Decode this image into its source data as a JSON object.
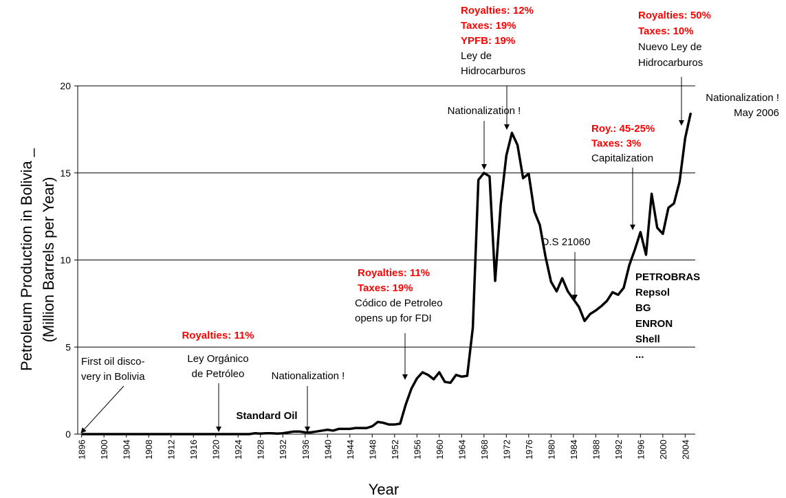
{
  "chart_data": {
    "type": "line",
    "x_title": "Year",
    "y_title": [
      "Petroleum Production in Bolivia _",
      "(Million Barrels per Year)"
    ],
    "x": [
      1896,
      1897,
      1898,
      1899,
      1900,
      1901,
      1902,
      1903,
      1904,
      1905,
      1906,
      1907,
      1908,
      1909,
      1910,
      1911,
      1912,
      1913,
      1914,
      1915,
      1916,
      1917,
      1918,
      1919,
      1920,
      1921,
      1922,
      1923,
      1924,
      1925,
      1926,
      1927,
      1928,
      1929,
      1930,
      1931,
      1932,
      1933,
      1934,
      1935,
      1936,
      1937,
      1938,
      1939,
      1940,
      1941,
      1942,
      1943,
      1944,
      1945,
      1946,
      1947,
      1948,
      1949,
      1950,
      1951,
      1952,
      1953,
      1954,
      1955,
      1956,
      1957,
      1958,
      1959,
      1960,
      1961,
      1962,
      1963,
      1964,
      1965,
      1966,
      1967,
      1968,
      1969,
      1970,
      1971,
      1972,
      1973,
      1974,
      1975,
      1976,
      1977,
      1978,
      1979,
      1980,
      1981,
      1982,
      1983,
      1984,
      1985,
      1986,
      1987,
      1988,
      1989,
      1990,
      1991,
      1992,
      1993,
      1994,
      1995,
      1996,
      1997,
      1998,
      1999,
      2000,
      2001,
      2002,
      2003,
      2004,
      2005
    ],
    "series": [
      {
        "color": "#000000",
        "values": [
          0,
          0,
          0,
          0,
          0,
          0,
          0,
          0,
          0,
          0,
          0,
          0,
          0,
          0,
          0,
          0,
          0,
          0,
          0,
          0,
          0,
          0,
          0,
          0,
          0,
          0,
          0,
          0,
          0,
          0,
          0,
          0.05,
          0.03,
          0.05,
          0.05,
          0.03,
          0.05,
          0.1,
          0.15,
          0.15,
          0.1,
          0.1,
          0.15,
          0.2,
          0.25,
          0.2,
          0.3,
          0.3,
          0.3,
          0.35,
          0.35,
          0.35,
          0.45,
          0.7,
          0.65,
          0.55,
          0.55,
          0.6,
          1.7,
          2.6,
          3.2,
          3.55,
          3.4,
          3.15,
          3.55,
          3.0,
          2.95,
          3.4,
          3.3,
          3.35,
          6.1,
          14.6,
          15.0,
          14.8,
          8.8,
          13.2,
          16.0,
          17.3,
          16.6,
          14.7,
          14.95,
          12.8,
          12.0,
          10.2,
          8.75,
          8.2,
          8.95,
          8.2,
          7.75,
          7.3,
          6.5,
          6.9,
          7.1,
          7.35,
          7.65,
          8.15,
          8.0,
          8.4,
          9.7,
          10.6,
          11.6,
          10.3,
          13.8,
          11.85,
          11.5,
          13.0,
          13.25,
          14.5,
          17.0,
          18.45
        ]
      }
    ],
    "xlim": [
      1895.3,
      2005.8
    ],
    "xticks": [
      1896,
      1900,
      1904,
      1908,
      1912,
      1916,
      1920,
      1924,
      1928,
      1932,
      1936,
      1940,
      1944,
      1948,
      1952,
      1956,
      1960,
      1964,
      1968,
      1972,
      1976,
      1980,
      1984,
      1988,
      1992,
      1996,
      2000,
      2004
    ],
    "ylim": [
      0,
      20
    ],
    "yticks": [
      0,
      5,
      10,
      15,
      20
    ],
    "grid": true,
    "annotations": [
      {
        "lines": [
          {
            "text": "First oil disco-",
            "color": "#000000",
            "bold": false
          },
          {
            "text": "very in Bolivia",
            "color": "#000000",
            "bold": false
          }
        ]
      },
      {
        "lines": [
          {
            "text": "Royalties: 11%",
            "color": "#ff0000",
            "bold": true
          },
          {
            "text": "Ley Orgánico",
            "color": "#000000",
            "bold": false
          },
          {
            "text": "de Petróleo",
            "color": "#000000",
            "bold": false
          }
        ]
      },
      {
        "lines": [
          {
            "text": "Standard Oil",
            "color": "#000000",
            "bold": true
          }
        ]
      },
      {
        "lines": [
          {
            "text": "Nationalization !",
            "color": "#000000",
            "bold": false
          }
        ]
      },
      {
        "lines": [
          {
            "text": "Royalties: 11%",
            "color": "#ff0000",
            "bold": true
          },
          {
            "text": "Taxes: 19%",
            "color": "#ff0000",
            "bold": true
          },
          {
            "text": "Códico de Petroleo",
            "color": "#000000",
            "bold": false
          },
          {
            "text": "opens up for FDI",
            "color": "#000000",
            "bold": false
          }
        ]
      },
      {
        "lines": [
          {
            "text": "Nationalization !",
            "color": "#000000",
            "bold": false
          }
        ]
      },
      {
        "lines": [
          {
            "text": "Royalties: 12%",
            "color": "#ff0000",
            "bold": true
          },
          {
            "text": "Taxes: 19%",
            "color": "#ff0000",
            "bold": true
          },
          {
            "text": "YPFB: 19%",
            "color": "#ff0000",
            "bold": true
          },
          {
            "text": "Ley de",
            "color": "#000000",
            "bold": false
          },
          {
            "text": "Hidrocarburos",
            "color": "#000000",
            "bold": false
          }
        ]
      },
      {
        "lines": [
          {
            "text": "D.S 21060",
            "color": "#000000",
            "bold": false
          }
        ]
      },
      {
        "lines": [
          {
            "text": "Roy.: 45-25%",
            "color": "#ff0000",
            "bold": true
          },
          {
            "text": "Taxes: 3%",
            "color": "#ff0000",
            "bold": true
          },
          {
            "text": "Capitalization",
            "color": "#000000",
            "bold": false
          }
        ]
      },
      {
        "lines": [
          {
            "text": "Royalties: 50%",
            "color": "#ff0000",
            "bold": true
          },
          {
            "text": "Taxes: 10%",
            "color": "#ff0000",
            "bold": true
          },
          {
            "text": "Nuevo Ley de",
            "color": "#000000",
            "bold": false
          },
          {
            "text": "Hidrocarburos",
            "color": "#000000",
            "bold": false
          }
        ]
      },
      {
        "lines": [
          {
            "text": "Nationalization !",
            "color": "#000000",
            "bold": false
          },
          {
            "text": "May 2006",
            "color": "#000000",
            "bold": false
          }
        ]
      },
      {
        "lines": [
          {
            "text": "PETROBRAS",
            "color": "#000000",
            "bold": true
          },
          {
            "text": "Repsol",
            "color": "#000000",
            "bold": true
          },
          {
            "text": "BG",
            "color": "#000000",
            "bold": true
          },
          {
            "text": "ENRON",
            "color": "#000000",
            "bold": true
          },
          {
            "text": "Shell",
            "color": "#000000",
            "bold": true
          },
          {
            "text": "...",
            "color": "#000000",
            "bold": true
          }
        ]
      }
    ]
  }
}
